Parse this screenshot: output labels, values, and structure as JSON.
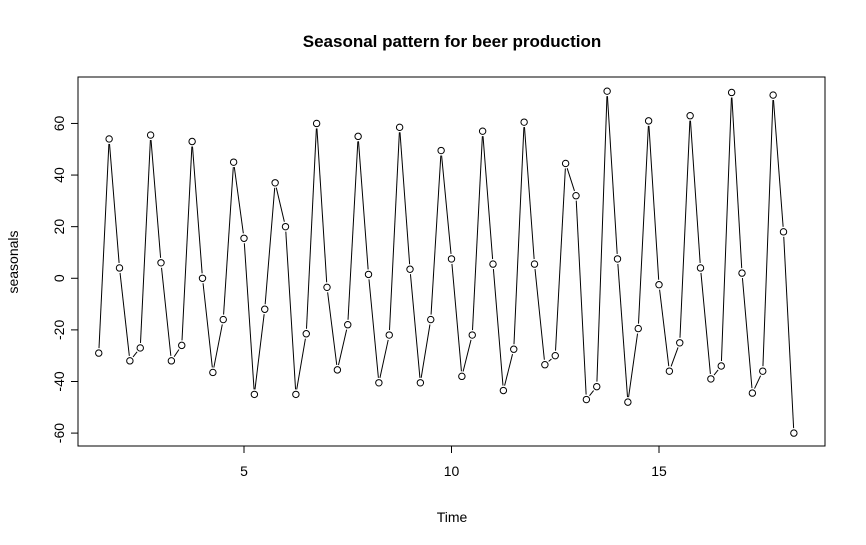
{
  "chart_data": {
    "type": "line",
    "title": "Seasonal pattern for beer production",
    "xlabel": "Time",
    "ylabel": "seasonals",
    "xlim": [
      1,
      19
    ],
    "ylim": [
      -65,
      78
    ],
    "xticks": [
      5,
      10,
      15
    ],
    "yticks": [
      -60,
      -40,
      -20,
      0,
      20,
      40,
      60
    ],
    "grid": false,
    "markers": "open-circle",
    "x_start": 1.5,
    "x_step": 0.25,
    "values": [
      -29,
      54,
      4,
      -32,
      -27,
      55.5,
      6,
      -32,
      -26,
      53,
      0,
      -36.5,
      -16,
      45,
      15.5,
      -45,
      -12,
      37,
      20,
      -45,
      -21.5,
      60,
      -3.5,
      -35.5,
      -18,
      55,
      1.5,
      -40.5,
      -22,
      58.5,
      3.5,
      -40.5,
      -16,
      49.5,
      7.5,
      -38,
      -22,
      57,
      5.5,
      -43.5,
      -27.5,
      60.5,
      5.5,
      -33.5,
      -30,
      44.5,
      32,
      -47,
      -42,
      72.5,
      7.5,
      -48,
      -19.5,
      61,
      -2.5,
      -36,
      -25,
      63,
      4,
      -39,
      -34,
      72,
      2,
      -44.5,
      -36,
      71,
      18,
      -60
    ]
  }
}
